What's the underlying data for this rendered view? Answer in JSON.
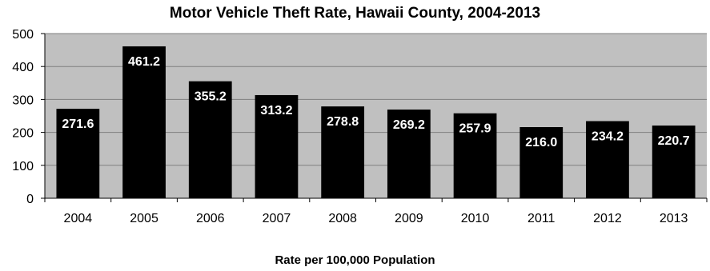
{
  "chart_data": {
    "type": "bar",
    "title": "Motor Vehicle Theft Rate, Hawaii County, 2004-2013",
    "xlabel": "Rate per 100,000 Population",
    "ylabel": "",
    "categories": [
      "2004",
      "2005",
      "2006",
      "2007",
      "2008",
      "2009",
      "2010",
      "2011",
      "2012",
      "2013"
    ],
    "values": [
      271.6,
      461.2,
      355.2,
      313.2,
      278.8,
      269.2,
      257.9,
      216.0,
      234.2,
      220.7
    ],
    "data_labels": [
      "271.6",
      "461.2",
      "355.2",
      "313.2",
      "278.8",
      "269.2",
      "257.9",
      "216.0",
      "234.2",
      "220.7"
    ],
    "ylim": [
      0,
      500
    ],
    "yticks": [
      0,
      100,
      200,
      300,
      400,
      500
    ],
    "grid": true,
    "legend": "none",
    "colors": {
      "bar": "#000000",
      "plot_background": "#c0c0c0",
      "gridline": "#7f7f7f",
      "label": "#ffffff"
    }
  }
}
